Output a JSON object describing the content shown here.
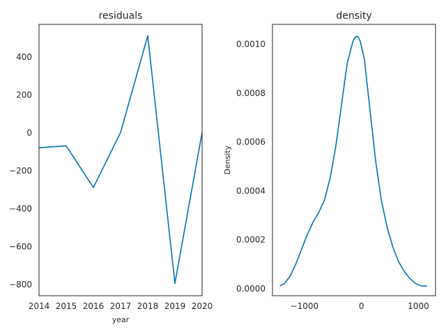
{
  "chart_data": [
    {
      "type": "line",
      "title": "residuals",
      "xlabel": "year",
      "ylabel": "",
      "x": [
        2014,
        2015,
        2016,
        2017,
        2018,
        2019,
        2020
      ],
      "series": [
        {
          "values": [
            -80,
            -70,
            -290,
            0,
            510,
            -795,
            0
          ]
        }
      ],
      "xlim": [
        2014,
        2020
      ],
      "ylim": [
        -860,
        570
      ],
      "xticks": [
        2014,
        2015,
        2016,
        2017,
        2018,
        2019,
        2020
      ],
      "yticks": [
        -800,
        -600,
        -400,
        -200,
        0,
        200,
        400
      ],
      "grid": false,
      "color": "#0072b2"
    },
    {
      "type": "line",
      "title": "density",
      "xlabel": "",
      "ylabel": "Density",
      "x": [
        -1430,
        -1350,
        -1250,
        -1150,
        -1050,
        -950,
        -850,
        -750,
        -650,
        -550,
        -450,
        -350,
        -250,
        -150,
        -100,
        -60,
        -20,
        50,
        150,
        250,
        350,
        450,
        550,
        650,
        750,
        850,
        950,
        1050,
        1150
      ],
      "series": [
        {
          "values": [
            1e-05,
            2e-05,
            5e-05,
            0.0001,
            0.00016,
            0.00022,
            0.00027,
            0.00031,
            0.00036,
            0.00045,
            0.00058,
            0.00075,
            0.00092,
            0.00101,
            0.00103,
            0.00103,
            0.00101,
            0.00094,
            0.00073,
            0.00052,
            0.00036,
            0.00025,
            0.00017,
            0.00011,
            7e-05,
            4e-05,
            2e-05,
            1e-05,
            1e-05
          ]
        }
      ],
      "xlim": [
        -1560,
        1300
      ],
      "ylim": [
        -3e-05,
        0.00108
      ],
      "xticks": [
        -1000,
        0,
        1000
      ],
      "xtick_labels": [
        "−1000",
        "0",
        "1000"
      ],
      "yticks": [
        0.0,
        0.0002,
        0.0004,
        0.0006,
        0.0008,
        0.001
      ],
      "ytick_labels": [
        "0.0000",
        "0.0002",
        "0.0004",
        "0.0006",
        "0.0008",
        "0.0010"
      ],
      "grid": false,
      "color": "#0072b2"
    }
  ]
}
